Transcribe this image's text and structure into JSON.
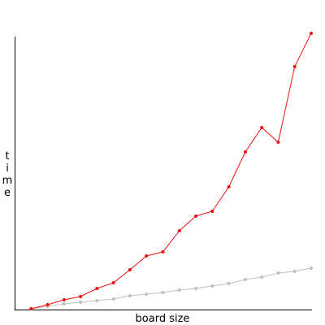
{
  "chart_data": {
    "type": "line",
    "title": "",
    "xlabel": "board size",
    "ylabel": "time",
    "grid": false,
    "legend": "none",
    "x": [
      1,
      2,
      3,
      4,
      5,
      6,
      7,
      8,
      9,
      10,
      11,
      12,
      13,
      14,
      15,
      16,
      17,
      18
    ],
    "xlim": [
      0,
      18
    ],
    "ylim": [
      0,
      335
    ],
    "series": [
      {
        "color": "#ee1111",
        "values": [
          0,
          5,
          11,
          15,
          25,
          32,
          48,
          65,
          70,
          96,
          114,
          120,
          150,
          193,
          223,
          205,
          298,
          339
        ]
      },
      {
        "color": "#c0c0c0",
        "values": [
          0,
          3,
          6,
          8,
          10,
          12,
          16,
          18,
          20,
          23,
          25,
          28,
          31,
          36,
          39,
          44,
          46,
          50
        ]
      }
    ]
  }
}
